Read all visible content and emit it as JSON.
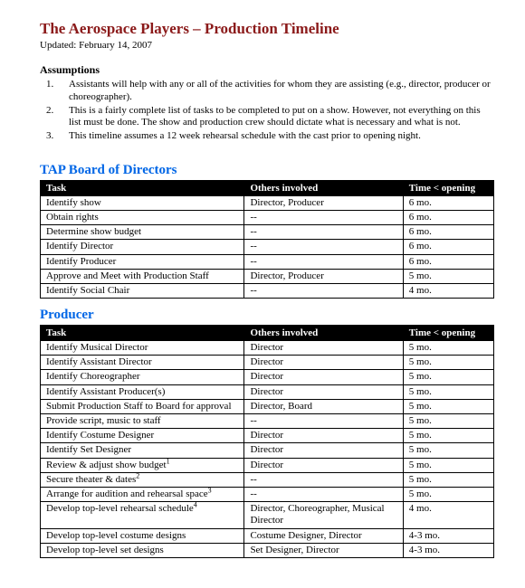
{
  "title": "The Aerospace Players – Production Timeline",
  "updated": "Updated: February 14, 2007",
  "assumptions_heading": "Assumptions",
  "assumptions": [
    "Assistants will help with any or all of the activities for whom they are assisting (e.g., director, producer or choreographer).",
    "This is a fairly complete list of tasks to be completed to put on a show.  However, not everything on this list must be done.  The show and production crew should dictate what is necessary and what is not.",
    "This timeline assumes a 12 week rehearsal schedule with the cast prior to opening night."
  ],
  "columns": {
    "task": "Task",
    "others": "Others involved",
    "time": "Time < opening"
  },
  "sections": [
    {
      "heading": "TAP Board of Directors",
      "rows": [
        {
          "task": "Identify show",
          "others": "Director, Producer",
          "time": "6 mo."
        },
        {
          "task": "Obtain rights",
          "others": "--",
          "time": "6 mo."
        },
        {
          "task": "Determine show budget",
          "others": "--",
          "time": "6 mo."
        },
        {
          "task": "Identify Director",
          "others": "--",
          "time": "6 mo."
        },
        {
          "task": "Identify Producer",
          "others": "--",
          "time": "6 mo."
        },
        {
          "task": "Approve and Meet with Production Staff",
          "others": "Director, Producer",
          "time": "5 mo."
        },
        {
          "task": "Identify Social Chair",
          "others": "--",
          "time": "4 mo."
        }
      ]
    },
    {
      "heading": "Producer",
      "rows": [
        {
          "task": "Identify Musical Director",
          "others": "Director",
          "time": "5 mo."
        },
        {
          "task": "Identify Assistant Director",
          "others": "Director",
          "time": "5 mo."
        },
        {
          "task": "Identify Choreographer",
          "others": "Director",
          "time": "5 mo."
        },
        {
          "task": "Identify Assistant Producer(s)",
          "others": "Director",
          "time": "5 mo."
        },
        {
          "task": "Submit Production Staff to Board for approval",
          "others": "Director, Board",
          "time": "5 mo."
        },
        {
          "task": "Provide script, music to staff",
          "others": "--",
          "time": "5 mo."
        },
        {
          "task": "Identify Costume Designer",
          "others": "Director",
          "time": "5 mo."
        },
        {
          "task": "Identify Set Designer",
          "others": "Director",
          "time": "5 mo."
        },
        {
          "task": "Review & adjust show budget",
          "sup": "1",
          "others": "Director",
          "time": "5 mo."
        },
        {
          "task": "Secure theater & dates",
          "sup": "2",
          "others": "--",
          "time": "5 mo."
        },
        {
          "task": "Arrange for audition and rehearsal space",
          "sup": "3",
          "others": "--",
          "time": "5 mo."
        },
        {
          "task": "Develop top-level rehearsal schedule",
          "sup": "4",
          "others": "Director, Choreographer, Musical Director",
          "time": "4 mo."
        },
        {
          "task": "Develop top-level costume designs",
          "others": "Costume Designer, Director",
          "time": "4-3 mo."
        },
        {
          "task": "Develop top-level set designs",
          "others": "Set Designer, Director",
          "time": "4-3 mo."
        }
      ]
    }
  ]
}
